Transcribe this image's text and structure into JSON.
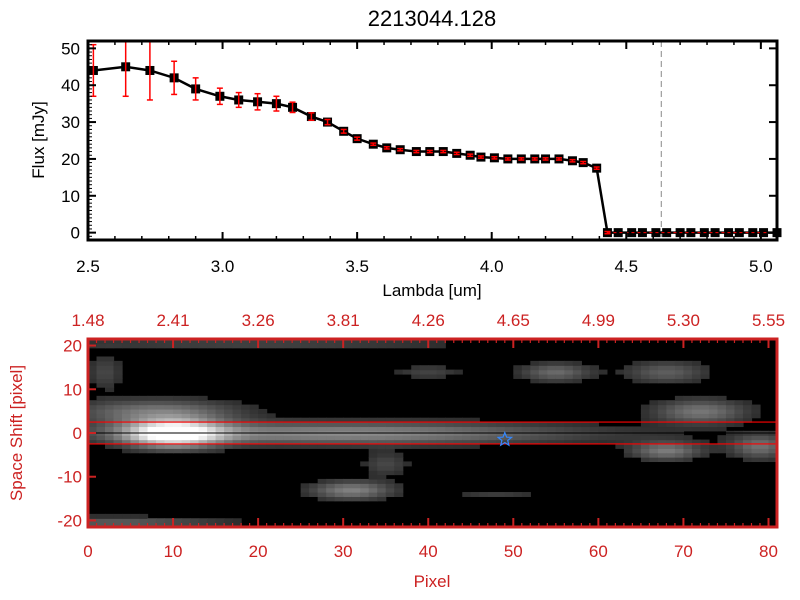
{
  "chart_data": [
    {
      "type": "line",
      "title": "2213044.128",
      "xlabel": "Lambda [um]",
      "ylabel": "Flux [mJy]",
      "xlim": [
        2.5,
        5.06
      ],
      "ylim": [
        -2,
        52
      ],
      "xticks": [
        "2.5",
        "3.0",
        "3.5",
        "4.0",
        "4.5",
        "5.0"
      ],
      "xtick_values": [
        2.5,
        3.0,
        3.5,
        4.0,
        4.5,
        5.0
      ],
      "yticks": [
        "0",
        "10",
        "20",
        "30",
        "40",
        "50"
      ],
      "ytick_values": [
        0,
        10,
        20,
        30,
        40,
        50
      ],
      "grid": false,
      "marker": "square",
      "line_color": "#000000",
      "errorbar_color": "#ff0000",
      "dashed_vline_x": 4.63,
      "x": [
        2.52,
        2.64,
        2.73,
        2.82,
        2.9,
        2.99,
        3.06,
        3.13,
        3.2,
        3.26,
        3.33,
        3.39,
        3.45,
        3.5,
        3.56,
        3.61,
        3.66,
        3.72,
        3.77,
        3.82,
        3.87,
        3.92,
        3.96,
        4.01,
        4.06,
        4.11,
        4.16,
        4.2,
        4.25,
        4.3,
        4.34,
        4.39,
        4.43,
        4.47,
        4.52,
        4.56,
        4.61,
        4.65,
        4.7,
        4.74,
        4.79,
        4.83,
        4.88,
        4.92,
        4.97,
        5.01,
        5.06
      ],
      "y": [
        44,
        45,
        44,
        42,
        39,
        37,
        36,
        35.5,
        35,
        34,
        31.5,
        30,
        27.5,
        25.5,
        24,
        23,
        22.5,
        22,
        22,
        22,
        21.5,
        21,
        20.5,
        20.3,
        20,
        20,
        20,
        20,
        20,
        19.5,
        19,
        17.5,
        0,
        0,
        0,
        0,
        0,
        0,
        0,
        0,
        0,
        0,
        0,
        0,
        0,
        0,
        0
      ],
      "yerr": [
        7,
        8,
        8,
        4.5,
        3,
        2.2,
        2,
        2.2,
        2,
        1.4,
        1,
        0.7,
        0.5,
        0.4,
        0.3,
        0.3,
        0.3,
        0.3,
        0.3,
        0.3,
        0.3,
        0.3,
        0.3,
        0.3,
        0.3,
        0.3,
        0.3,
        0.3,
        0.3,
        0.3,
        0.3,
        0.3,
        0.3,
        0,
        0,
        0,
        0,
        0,
        0,
        0,
        0,
        0,
        0,
        0,
        0,
        0,
        0
      ]
    },
    {
      "type": "heatmap",
      "xlabel": "Pixel",
      "ylabel": "Space Shift [pixel]",
      "xlim": [
        0,
        81
      ],
      "ylim": [
        -21.5,
        21.5
      ],
      "xticks": [
        "0",
        "10",
        "20",
        "30",
        "40",
        "50",
        "60",
        "70",
        "80"
      ],
      "xtick_values": [
        0,
        10,
        20,
        30,
        40,
        50,
        60,
        70,
        80
      ],
      "yticks": [
        "20",
        "10",
        "0",
        "-10",
        "-20"
      ],
      "ytick_values": [
        20,
        10,
        0,
        -10,
        -20
      ],
      "top_axis_ticks": [
        "1.48",
        "2.41",
        "3.26",
        "3.81",
        "4.26",
        "4.65",
        "4.99",
        "5.30",
        "5.55"
      ],
      "colormap": "grayscale",
      "axis_color": "#cc2222",
      "aperture_lines_y": [
        2.5,
        -2.5
      ],
      "aperture_line_color": "#ff0000",
      "center_line_y": 0,
      "marker": {
        "type": "star",
        "x": 49,
        "y": -1.5,
        "color": "#3388ff"
      },
      "sources": [
        {
          "x": 10,
          "y": 0,
          "sx": 4,
          "sy": 2.2,
          "peak": 1.0
        },
        {
          "x": 30,
          "y": 0,
          "sx": 20,
          "sy": 1.8,
          "peak": 0.5
        },
        {
          "x": 8,
          "y": 5,
          "sx": 7,
          "sy": 2,
          "peak": 0.4
        },
        {
          "x": 31,
          "y": -13,
          "sx": 3.5,
          "sy": 1.5,
          "peak": 0.45
        },
        {
          "x": 55,
          "y": 14,
          "sx": 3,
          "sy": 1.5,
          "peak": 0.35
        },
        {
          "x": 68,
          "y": 14,
          "sx": 3.5,
          "sy": 1.8,
          "peak": 0.3
        },
        {
          "x": 72,
          "y": 5,
          "sx": 4,
          "sy": 2,
          "peak": 0.4
        },
        {
          "x": 68,
          "y": -4,
          "sx": 3,
          "sy": 1.5,
          "peak": 0.42
        },
        {
          "x": 79,
          "y": -3,
          "sx": 2.5,
          "sy": 2,
          "peak": 0.38
        },
        {
          "x": 40,
          "y": 14,
          "sx": 3,
          "sy": 1.2,
          "peak": 0.18
        },
        {
          "x": 35,
          "y": -7,
          "sx": 2,
          "sy": 2,
          "peak": 0.2
        },
        {
          "x": 3,
          "y": -20.5,
          "sx": 10,
          "sy": 1,
          "peak": 0.3
        },
        {
          "x": 20,
          "y": 20.5,
          "sx": 20,
          "sy": 0.8,
          "peak": 0.2
        },
        {
          "x": 2,
          "y": 14,
          "sx": 1.5,
          "sy": 3,
          "peak": 0.2
        },
        {
          "x": 48,
          "y": -14,
          "sx": 4,
          "sy": 0.8,
          "peak": 0.15
        }
      ]
    }
  ]
}
